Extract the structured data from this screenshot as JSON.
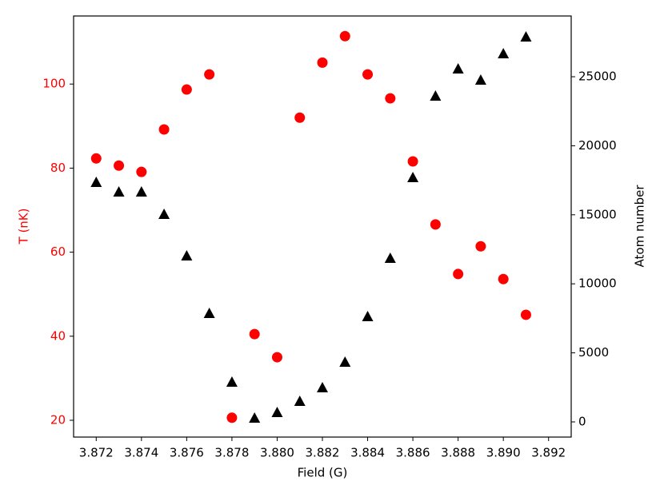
{
  "chart_data": {
    "type": "scatter",
    "xlabel": "Field (G)",
    "ylabel": "T (nK)",
    "y2label": "Atom number",
    "ylabel_color": "#ff0000",
    "x": [
      3.872,
      3.873,
      3.874,
      3.875,
      3.876,
      3.877,
      3.878,
      3.879,
      3.88,
      3.881,
      3.882,
      3.883,
      3.884,
      3.885,
      3.886,
      3.887,
      3.888,
      3.889,
      3.89,
      3.891
    ],
    "series": [
      {
        "color": "#ff0000",
        "marker": "circle",
        "axis": "y",
        "values": [
          82.3,
          80.6,
          79.1,
          89.2,
          98.7,
          102.3,
          20.6,
          40.5,
          35.0,
          92.0,
          105.1,
          111.4,
          102.3,
          96.6,
          81.6,
          66.6,
          54.8,
          61.4,
          53.6,
          45.1
        ]
      },
      {
        "color": "#000000",
        "marker": "triangle",
        "axis": "y2",
        "values": [
          17361,
          16667,
          16667,
          15046,
          12037,
          7870,
          2894,
          289,
          694,
          1505,
          2488,
          4340,
          7639,
          11863,
          17708,
          23611,
          25579,
          24769,
          26678,
          27894
        ]
      }
    ],
    "xlim": [
      3.871,
      3.893
    ],
    "xticks": [
      3.872,
      3.874,
      3.876,
      3.878,
      {
        "value": 3.88,
        "label": "3.880"
      },
      3.882,
      3.884,
      3.886,
      3.888,
      {
        "value": 3.89,
        "label": "3.890"
      },
      3.892
    ],
    "ylim": [
      16,
      116.2
    ],
    "yticks": [
      20,
      40,
      60,
      80,
      100
    ],
    "y2lim": [
      -1100,
      29400
    ],
    "y2ticks": [
      0,
      5000,
      10000,
      15000,
      20000,
      25000
    ],
    "grid": false
  }
}
